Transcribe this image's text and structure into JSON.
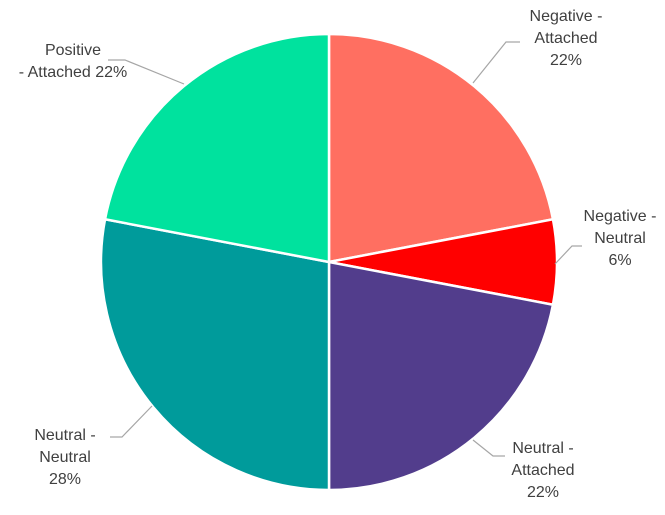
{
  "chart_data": {
    "type": "pie",
    "slices": [
      {
        "label": "Negative - Attached",
        "value": 22,
        "display": "22%",
        "color": "#FF6F61"
      },
      {
        "label": "Negative - Neutral",
        "value": 6,
        "display": "6%",
        "color": "#FF0000"
      },
      {
        "label": "Neutral - Attached",
        "value": 22,
        "display": "22%",
        "color": "#523D8C"
      },
      {
        "label": "Neutral - Neutral",
        "value": 28,
        "display": "28%",
        "color": "#009B9B"
      },
      {
        "label": "Positive - Attached",
        "value": 22,
        "display": "22%",
        "color": "#00E29E"
      }
    ],
    "start": "12 o'clock",
    "direction": "clockwise",
    "legend": "none",
    "data_labels": "outside with leader lines"
  }
}
